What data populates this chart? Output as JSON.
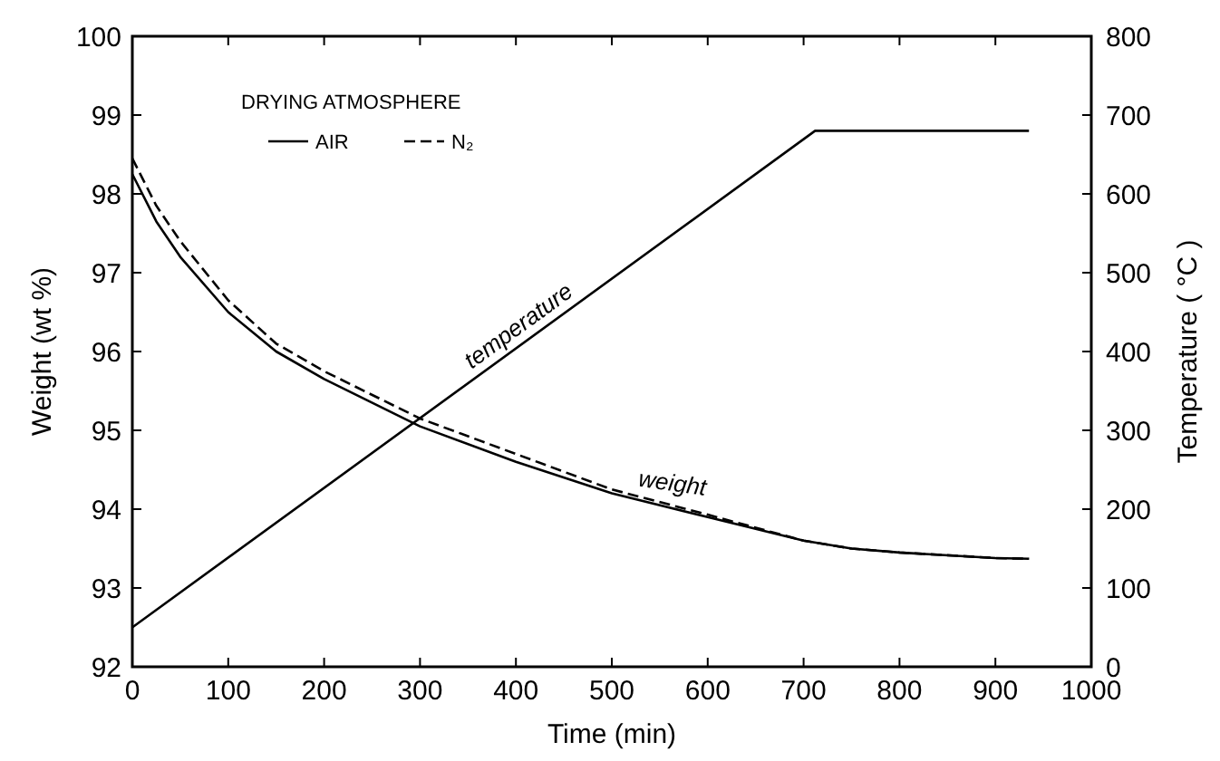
{
  "chart_data": {
    "type": "line",
    "xlabel": "Time (min)",
    "ylabel": "Weight (wt %)",
    "y2label": "Temperature ( °C )",
    "legend_title": "DRYING ATMOSPHERE",
    "legend": "top left",
    "xlim": [
      0,
      1000
    ],
    "xticks": [
      0,
      100,
      200,
      300,
      400,
      500,
      600,
      700,
      800,
      900,
      1000
    ],
    "ylim": [
      92,
      100
    ],
    "yticks": [
      92,
      93,
      94,
      95,
      96,
      97,
      98,
      99,
      100
    ],
    "y2lim": [
      0,
      800
    ],
    "y2ticks": [
      0,
      100,
      200,
      300,
      400,
      500,
      600,
      700,
      800
    ],
    "series": [
      {
        "name": "AIR",
        "color": "#000000",
        "line_style": "solid",
        "x": [
          0,
          25,
          50,
          100,
          150,
          200,
          300,
          400,
          500,
          600,
          700,
          750,
          800,
          900,
          935
        ],
        "values": [
          98.25,
          97.65,
          97.2,
          96.5,
          96.0,
          95.65,
          95.05,
          94.6,
          94.2,
          93.9,
          93.6,
          93.5,
          93.45,
          93.38,
          93.37
        ]
      },
      {
        "name": "N₂",
        "color": "#000000",
        "line_style": "dashed",
        "x": [
          0,
          25,
          50,
          100,
          150,
          200,
          300,
          400,
          500,
          600,
          700,
          750,
          800,
          900,
          935
        ],
        "values": [
          98.45,
          97.85,
          97.4,
          96.65,
          96.1,
          95.75,
          95.15,
          94.7,
          94.25,
          93.93,
          93.6,
          93.5,
          93.45,
          93.38,
          93.37
        ]
      },
      {
        "name": "temperature",
        "color": "#000000",
        "line_style": "solid",
        "axis": "y2",
        "x": [
          0,
          712,
          935
        ],
        "values": [
          50,
          680,
          680
        ]
      }
    ],
    "annotations": [
      {
        "text": "weight",
        "x": 560,
        "y": 94.05
      }
    ]
  }
}
